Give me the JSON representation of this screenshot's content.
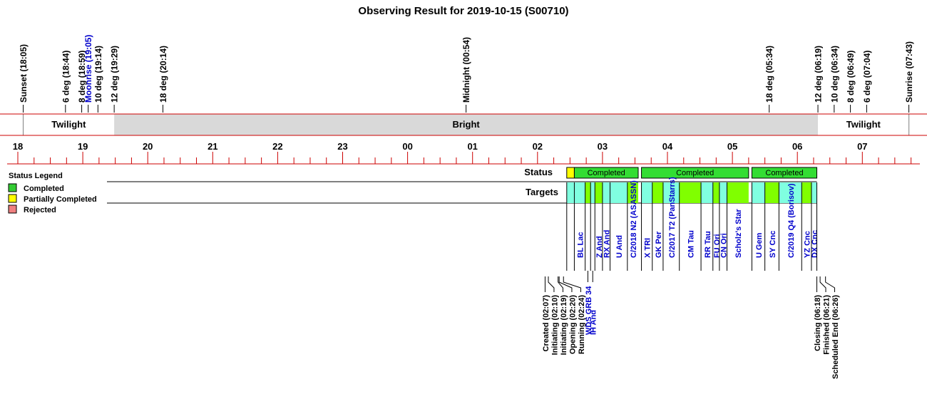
{
  "chart_data": {
    "type": "timeline",
    "title": "Observing Result for 2019-10-15 (S00710)",
    "time_axis": {
      "start": "17:50",
      "end": "07:55",
      "hour_ticks": [
        "18",
        "19",
        "20",
        "21",
        "22",
        "23",
        "00",
        "01",
        "02",
        "03",
        "04",
        "05",
        "06",
        "07"
      ]
    },
    "sky_markers": [
      {
        "label": "Sunset (18:05)",
        "time": "18:05",
        "kind": "sun"
      },
      {
        "label": "6 deg (18:44)",
        "time": "18:44",
        "kind": "twilight"
      },
      {
        "label": "8 deg (18:59)",
        "time": "18:59",
        "kind": "twilight"
      },
      {
        "label": "Moonrise (19:05)",
        "time": "19:05",
        "kind": "moon"
      },
      {
        "label": "10 deg (19:14)",
        "time": "19:14",
        "kind": "twilight"
      },
      {
        "label": "12 deg (19:29)",
        "time": "19:29",
        "kind": "twilight"
      },
      {
        "label": "18 deg (20:14)",
        "time": "20:14",
        "kind": "twilight"
      },
      {
        "label": "Midnight (00:54)",
        "time": "00:54",
        "kind": "midnight"
      },
      {
        "label": "18 deg (05:34)",
        "time": "05:34",
        "kind": "twilight"
      },
      {
        "label": "12 deg (06:19)",
        "time": "06:19",
        "kind": "twilight"
      },
      {
        "label": "10 deg (06:34)",
        "time": "06:34",
        "kind": "twilight"
      },
      {
        "label": "8 deg (06:49)",
        "time": "06:49",
        "kind": "twilight"
      },
      {
        "label": "6 deg (07:04)",
        "time": "07:04",
        "kind": "twilight"
      },
      {
        "label": "Sunrise (07:43)",
        "time": "07:43",
        "kind": "sun"
      }
    ],
    "sky_periods": [
      {
        "label": "Twilight",
        "start": "18:05",
        "end": "19:29",
        "color": "#ffffff"
      },
      {
        "label": "Bright",
        "start": "19:29",
        "end": "06:19",
        "color": "#d9d9d9"
      },
      {
        "label": "Twilight",
        "start": "06:19",
        "end": "07:43",
        "color": "#ffffff"
      }
    ],
    "status_row_label": "Status",
    "targets_row_label": "Targets",
    "status_segments": [
      {
        "label": "",
        "start": "02:27",
        "end": "02:34",
        "status": "Partially Completed"
      },
      {
        "label": "Completed",
        "start": "02:34",
        "end": "03:33",
        "status": "Completed"
      },
      {
        "label": "Completed",
        "start": "03:36",
        "end": "05:15",
        "status": "Completed"
      },
      {
        "label": "Completed",
        "start": "05:18",
        "end": "06:18",
        "status": "Completed"
      }
    ],
    "targets": [
      {
        "name": "",
        "start": "02:27",
        "end": "02:34",
        "color": "#80ffe0"
      },
      {
        "name": "BL Lac",
        "start": "02:34",
        "end": "02:44",
        "color": "#80ffe0"
      },
      {
        "name": "WDS GRB 34",
        "start": "02:44",
        "end": "02:49",
        "color": "#80ff00"
      },
      {
        "name": "IH And",
        "start": "02:49",
        "end": "02:53",
        "color": "#80ffe0"
      },
      {
        "name": "Z And",
        "start": "02:53",
        "end": "03:00",
        "color": "#80ff00"
      },
      {
        "name": "RX And",
        "start": "03:00",
        "end": "03:07",
        "color": "#80ffe0"
      },
      {
        "name": "U And",
        "start": "03:07",
        "end": "03:23",
        "color": "#80ffe0"
      },
      {
        "name": "C/2018 N2 (ASASSN)",
        "start": "03:23",
        "end": "03:33",
        "color": "#80ff00"
      },
      {
        "name": "X TRI",
        "start": "03:36",
        "end": "03:46",
        "color": "#80ffe0"
      },
      {
        "name": "GK Per",
        "start": "03:46",
        "end": "03:56",
        "color": "#80ff00"
      },
      {
        "name": "C/2017 T2 (PanStarrs)",
        "start": "03:56",
        "end": "04:11",
        "color": "#80ffe0"
      },
      {
        "name": "CM Tau",
        "start": "04:11",
        "end": "04:31",
        "color": "#80ff00"
      },
      {
        "name": "RR Tau",
        "start": "04:31",
        "end": "04:42",
        "color": "#80ffe0"
      },
      {
        "name": "FU Ori",
        "start": "04:42",
        "end": "04:48",
        "color": "#80ff00"
      },
      {
        "name": "CN Ori",
        "start": "04:48",
        "end": "04:55",
        "color": "#80ffe0"
      },
      {
        "name": "Scholz's Star",
        "start": "04:55",
        "end": "05:15",
        "color": "#80ff00"
      },
      {
        "name": "U Gem",
        "start": "05:18",
        "end": "05:30",
        "color": "#80ffe0"
      },
      {
        "name": "SY Cnc",
        "start": "05:30",
        "end": "05:43",
        "color": "#80ff00"
      },
      {
        "name": "C/2019 Q4 (Borisov)",
        "start": "05:43",
        "end": "06:04",
        "color": "#80ffe0"
      },
      {
        "name": "YZ Cnc",
        "start": "06:04",
        "end": "06:13",
        "color": "#80ff00"
      },
      {
        "name": "DX Cnc",
        "start": "06:13",
        "end": "06:18",
        "color": "#80ffe0"
      }
    ],
    "events": [
      {
        "label": "Created (02:07)",
        "time": "02:07"
      },
      {
        "label": "Initiating (02:10)",
        "time": "02:10"
      },
      {
        "label": "Initiating (02:19)",
        "time": "02:19"
      },
      {
        "label": "Opening (02:20)",
        "time": "02:20"
      },
      {
        "label": "Running (02:24)",
        "time": "02:24"
      },
      {
        "label": "Closing (06:18)",
        "time": "06:18"
      },
      {
        "label": "Finished (06:21)",
        "time": "06:21"
      },
      {
        "label": "Scheduled End (06:26)",
        "time": "06:26"
      }
    ],
    "legend": {
      "title": "Status Legend",
      "position": "left",
      "items": [
        {
          "label": "Completed",
          "color": "#33cc33"
        },
        {
          "label": "Partially Completed",
          "color": "#ffff00"
        },
        {
          "label": "Rejected",
          "color": "#f08080"
        }
      ]
    },
    "colors": {
      "axis_line": "#cc0000",
      "status_completed": "#33dd33",
      "status_partial": "#ffff00",
      "target_label": "#0000cc",
      "moon_label": "#0000cc",
      "bright_fill": "#d9d9d9"
    }
  }
}
